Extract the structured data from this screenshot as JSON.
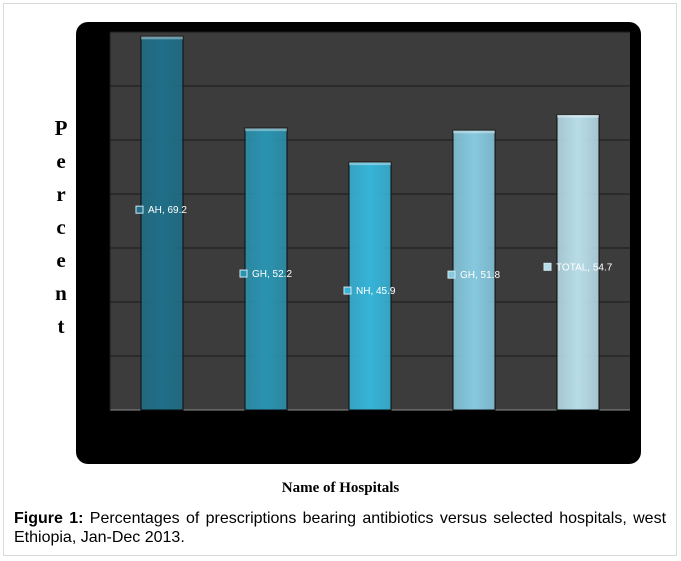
{
  "chart_data": {
    "type": "bar",
    "categories": [
      "AH",
      "GH",
      "NH",
      "GH",
      "TOTAL"
    ],
    "values": [
      69.2,
      52.2,
      45.9,
      51.8,
      54.7
    ],
    "data_labels": [
      "AH, 69.2",
      "GH, 52.2",
      "NH, 45.9",
      "GH, 51.8",
      "TOTAL, 54.7"
    ],
    "bar_colors": [
      "#1f6f88",
      "#2a93b0",
      "#36b4d8",
      "#86c9df",
      "#b7dde9"
    ],
    "ylabel": "Percent",
    "xlabel": "Name of Hospitals",
    "ylim": [
      0,
      70
    ],
    "grid": true
  },
  "caption": {
    "label": "Figure 1:",
    "text": " Percentages of prescriptions bearing antibiotics versus selected hospitals, west Ethiopia, Jan-Dec 2013."
  }
}
